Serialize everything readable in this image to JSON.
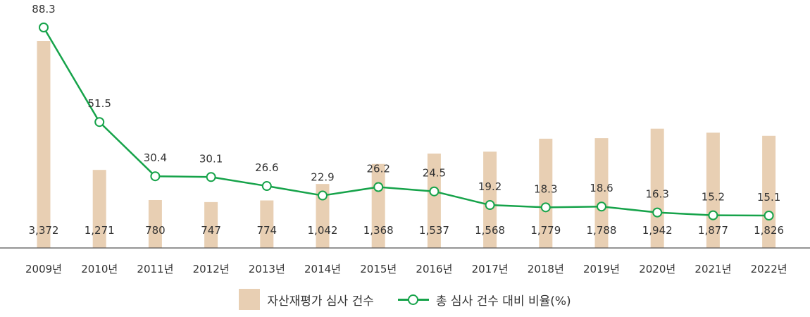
{
  "chart_data": {
    "type": "bar",
    "categories": [
      "2009년",
      "2010년",
      "2011년",
      "2012년",
      "2013년",
      "2014년",
      "2015년",
      "2016년",
      "2017년",
      "2018년",
      "2019년",
      "2020년",
      "2021년",
      "2022년"
    ],
    "series": [
      {
        "name": "자산재평가 심사 건수",
        "type": "bar",
        "values": [
          3372,
          1271,
          780,
          747,
          774,
          1042,
          1368,
          1537,
          1568,
          1779,
          1788,
          1942,
          1877,
          1826
        ],
        "labels": [
          "3,372",
          "1,271",
          "780",
          "747",
          "774",
          "1,042",
          "1,368",
          "1,537",
          "1,568",
          "1,779",
          "1,788",
          "1,942",
          "1,877",
          "1,826"
        ],
        "color": "#e8cfb3"
      },
      {
        "name": "총 심사 건수 대비 비율(%)",
        "type": "line",
        "values": [
          88.3,
          51.5,
          30.4,
          30.1,
          26.6,
          22.9,
          26.2,
          24.5,
          19.2,
          18.3,
          18.6,
          16.3,
          15.2,
          15.1
        ],
        "labels": [
          "88.3",
          "51.5",
          "30.4",
          "30.1",
          "26.6",
          "22.9",
          "26.2",
          "24.5",
          "19.2",
          "18.3",
          "18.6",
          "16.3",
          "15.2",
          "15.1"
        ],
        "color": "#16a34a"
      }
    ],
    "title": "",
    "xlabel": "",
    "ylabel": "",
    "grid": false,
    "legend_position": "bottom-center"
  }
}
